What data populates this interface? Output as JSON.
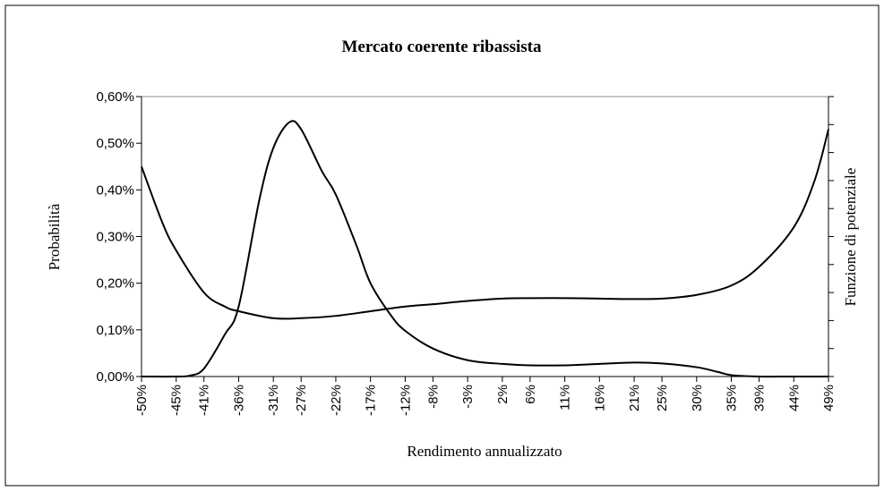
{
  "chart_data": {
    "type": "line",
    "title": "Mercato coerente ribassista",
    "x_label": "Rendimento  annualizzato",
    "y_label": "Probabilità",
    "y2_label": "Funzione  di  potenziale",
    "xlim": [
      -50,
      49
    ],
    "xticks": [
      {
        "value": -50,
        "label": "-50%"
      },
      {
        "value": -45,
        "label": "-45%"
      },
      {
        "value": -41,
        "label": "-41%"
      },
      {
        "value": -36,
        "label": "-36%"
      },
      {
        "value": -31,
        "label": "-31%"
      },
      {
        "value": -27,
        "label": "-27%"
      },
      {
        "value": -22,
        "label": "-22%"
      },
      {
        "value": -17,
        "label": "-17%"
      },
      {
        "value": -12,
        "label": "-12%"
      },
      {
        "value": -8,
        "label": "-8%"
      },
      {
        "value": -3,
        "label": "-3%"
      },
      {
        "value": 2,
        "label": "2%"
      },
      {
        "value": 6,
        "label": "6%"
      },
      {
        "value": 11,
        "label": "11%"
      },
      {
        "value": 16,
        "label": "16%"
      },
      {
        "value": 21,
        "label": "21%"
      },
      {
        "value": 25,
        "label": "25%"
      },
      {
        "value": 30,
        "label": "30%"
      },
      {
        "value": 35,
        "label": "35%"
      },
      {
        "value": 39,
        "label": "39%"
      },
      {
        "value": 44,
        "label": "44%"
      },
      {
        "value": 49,
        "label": "49%"
      }
    ],
    "ylim": [
      0,
      0.6
    ],
    "yticks": [
      {
        "value": 0,
        "label": "0,00%"
      },
      {
        "value": 0.1,
        "label": "0,10%"
      },
      {
        "value": 0.2,
        "label": "0,20%"
      },
      {
        "value": 0.3,
        "label": "0,30%"
      },
      {
        "value": 0.4,
        "label": "0,40%"
      },
      {
        "value": 0.5,
        "label": "0,50%"
      },
      {
        "value": 0.6,
        "label": "0,60%"
      }
    ],
    "series": [
      {
        "color": "#000000",
        "x": [
          -50,
          -45,
          -43,
          -41,
          -38,
          -36,
          -33,
          -31,
          -28.7,
          -27,
          -24,
          -22,
          -19,
          -17,
          -14,
          -12,
          -8,
          -3,
          2,
          6,
          11,
          16,
          21,
          25,
          30,
          33,
          35,
          39,
          44,
          49
        ],
        "values": [
          0,
          0,
          0.002,
          0.017,
          0.09,
          0.15,
          0.38,
          0.49,
          0.545,
          0.53,
          0.44,
          0.39,
          0.28,
          0.2,
          0.13,
          0.098,
          0.06,
          0.035,
          0.027,
          0.024,
          0.024,
          0.027,
          0.03,
          0.028,
          0.02,
          0.01,
          0.003,
          0,
          0,
          0
        ]
      },
      {
        "color": "#000000",
        "x": [
          -50,
          -47,
          -45,
          -41,
          -38,
          -36,
          -31,
          -27,
          -22,
          -17,
          -12,
          -8,
          -3,
          2,
          6,
          11,
          16,
          21,
          25,
          30,
          35,
          39,
          44,
          47,
          49
        ],
        "values": [
          0.45,
          0.33,
          0.27,
          0.18,
          0.15,
          0.14,
          0.125,
          0.125,
          0.13,
          0.14,
          0.15,
          0.155,
          0.162,
          0.167,
          0.168,
          0.168,
          0.167,
          0.166,
          0.167,
          0.175,
          0.195,
          0.235,
          0.32,
          0.42,
          0.53
        ]
      }
    ]
  }
}
